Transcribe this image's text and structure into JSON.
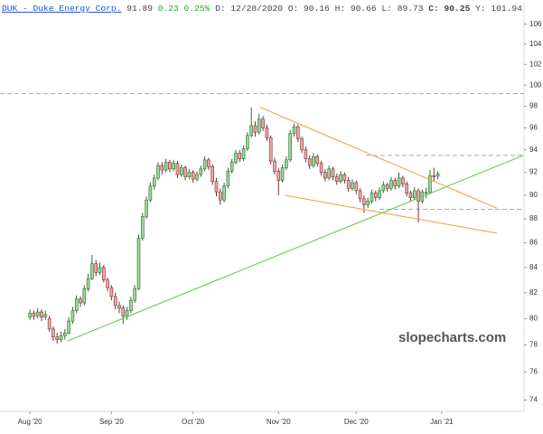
{
  "header": {
    "symbol": "DUK - Duke Energy Corp.",
    "last": 91.89,
    "change": 0.23,
    "change_pct": "0.25%",
    "date_label": "D:",
    "date": "12/28/2020",
    "open_label": "O:",
    "open": 90.16,
    "high_label": "H:",
    "high": 90.66,
    "low_label": "L:",
    "low": 89.73,
    "close_label": "C:",
    "close": 90.25,
    "year_high_label": "Y:",
    "year_high": 101.94
  },
  "chart_data": {
    "type": "candlestick",
    "watermark": "slopecharts.com",
    "log_scale": true,
    "up_color": "#9bd69b",
    "down_color": "#eaa8a8",
    "xlim": [
      -7.7,
      127.2
    ],
    "ylim": [
      73.2,
      108.2
    ],
    "xticks": [
      {
        "value": 0,
        "label": "Aug '20"
      },
      {
        "value": 21,
        "label": "Sep '20"
      },
      {
        "value": 42,
        "label": "Oct '20"
      },
      {
        "value": 64,
        "label": "Nov '20"
      },
      {
        "value": 84,
        "label": "Dec '20"
      },
      {
        "value": 106,
        "label": "Jan '21"
      }
    ],
    "yticks": [
      74,
      76,
      78,
      80,
      82,
      84,
      86,
      88,
      90,
      92,
      94,
      96,
      98,
      100,
      102,
      104,
      106
    ],
    "open": [
      80.1,
      80.4,
      80.2,
      80.5,
      80.1,
      80.0,
      79.2,
      78.6,
      78.4,
      78.7,
      78.9,
      79.8,
      80.6,
      81.5,
      81.2,
      82.3,
      83.1,
      84.3,
      83.6,
      84.0,
      83.0,
      82.4,
      81.7,
      81.0,
      80.8,
      80.2,
      80.6,
      81.4,
      82.3,
      86.4,
      88.2,
      89.6,
      90.8,
      91.5,
      92.6,
      92.2,
      92.9,
      92.3,
      92.8,
      91.8,
      92.4,
      91.6,
      92.0,
      91.4,
      91.8,
      92.3,
      93.1,
      92.5,
      91.2,
      90.3,
      89.6,
      90.8,
      92.1,
      92.9,
      93.7,
      93.2,
      94.1,
      95.3,
      96.2,
      95.6,
      96.8,
      96.0,
      95.1,
      93.0,
      92.1,
      91.3,
      92.4,
      93.1,
      95.5,
      96.1,
      95.0,
      94.0,
      93.2,
      92.6,
      93.4,
      92.8,
      92.0,
      91.5,
      92.3,
      91.6,
      91.2,
      91.8,
      91.3,
      90.6,
      91.1,
      90.4,
      89.7,
      89.2,
      89.5,
      90.2,
      89.8,
      90.4,
      90.9,
      90.6,
      91.3,
      90.8,
      91.5,
      91.0,
      90.2,
      89.8,
      90.4,
      89.5,
      90.16,
      90.25,
      91.7,
      91.66
    ],
    "high": [
      80.7,
      80.6,
      80.8,
      80.7,
      80.6,
      80.2,
      79.4,
      78.9,
      79.0,
      79.2,
      80.1,
      80.9,
      81.8,
      81.7,
      82.6,
      83.5,
      85.0,
      84.6,
      84.4,
      84.2,
      83.2,
      82.6,
      82.0,
      81.3,
      81.0,
      80.9,
      81.7,
      82.6,
      86.7,
      88.5,
      89.9,
      91.1,
      91.8,
      92.9,
      92.9,
      93.2,
      93.1,
      93.1,
      93.0,
      92.7,
      92.6,
      92.3,
      92.2,
      92.1,
      92.6,
      93.4,
      93.3,
      92.7,
      91.5,
      90.6,
      91.1,
      92.4,
      93.2,
      94.0,
      94.0,
      94.4,
      95.6,
      97.9,
      96.6,
      97.3,
      97.1,
      96.3,
      95.3,
      93.3,
      92.4,
      92.7,
      93.4,
      95.8,
      96.4,
      96.3,
      95.2,
      94.3,
      93.5,
      93.7,
      93.6,
      93.0,
      92.3,
      92.6,
      92.5,
      91.9,
      92.1,
      92.0,
      91.6,
      91.4,
      91.3,
      90.6,
      90.0,
      89.8,
      90.5,
      90.4,
      90.7,
      91.2,
      91.1,
      91.6,
      91.5,
      92.0,
      91.7,
      91.2,
      90.4,
      90.7,
      90.6,
      90.5,
      90.66,
      92.2,
      92.4,
      92.1
    ],
    "low": [
      79.9,
      79.9,
      80.0,
      79.8,
      79.9,
      79.0,
      78.3,
      78.1,
      78.2,
      78.4,
      78.8,
      79.6,
      80.4,
      80.9,
      81.0,
      82.1,
      83.0,
      83.3,
      83.4,
      82.8,
      82.1,
      81.4,
      80.7,
      80.4,
      79.6,
      79.9,
      80.4,
      81.2,
      82.2,
      86.2,
      88.0,
      89.4,
      90.5,
      91.3,
      91.8,
      92.0,
      92.0,
      92.1,
      91.5,
      91.6,
      91.3,
      91.4,
      91.1,
      91.2,
      91.6,
      92.1,
      92.2,
      90.9,
      89.9,
      89.2,
      89.4,
      90.6,
      91.9,
      92.7,
      92.9,
      93.0,
      93.9,
      95.1,
      95.2,
      95.4,
      95.7,
      94.8,
      92.7,
      91.8,
      90.0,
      91.1,
      92.2,
      92.9,
      95.2,
      94.7,
      93.7,
      92.9,
      92.3,
      92.4,
      92.5,
      91.7,
      91.2,
      91.3,
      91.3,
      90.9,
      91.0,
      91.0,
      90.3,
      90.4,
      90.1,
      89.4,
      88.5,
      88.9,
      89.3,
      89.5,
      89.6,
      90.2,
      90.3,
      90.4,
      90.5,
      90.6,
      90.7,
      89.9,
      89.5,
      89.6,
      87.7,
      89.3,
      89.73,
      90.1,
      91.2,
      91.4
    ],
    "close": [
      80.4,
      80.2,
      80.5,
      80.1,
      80.3,
      79.2,
      78.6,
      78.4,
      78.7,
      78.9,
      79.8,
      80.6,
      81.5,
      81.2,
      82.3,
      83.1,
      84.3,
      83.6,
      84.0,
      83.0,
      82.4,
      81.7,
      81.0,
      80.8,
      80.2,
      80.6,
      81.4,
      82.3,
      86.4,
      88.2,
      89.6,
      90.8,
      91.5,
      92.6,
      92.2,
      92.9,
      92.3,
      92.8,
      91.8,
      92.4,
      91.6,
      92.0,
      91.4,
      91.8,
      92.3,
      93.1,
      92.5,
      91.2,
      90.3,
      89.6,
      90.8,
      92.1,
      92.9,
      93.7,
      93.2,
      94.1,
      95.3,
      96.2,
      95.6,
      96.8,
      96.0,
      95.1,
      93.0,
      92.1,
      91.3,
      92.4,
      93.1,
      95.5,
      96.1,
      95.0,
      94.0,
      93.2,
      92.6,
      93.4,
      92.8,
      92.0,
      91.5,
      92.3,
      91.6,
      91.2,
      91.8,
      91.3,
      90.6,
      91.1,
      90.4,
      89.7,
      89.2,
      89.5,
      90.2,
      89.8,
      90.4,
      90.9,
      90.6,
      91.3,
      90.8,
      91.5,
      91.0,
      90.2,
      89.8,
      90.4,
      89.5,
      90.3,
      90.25,
      91.7,
      91.66,
      91.89
    ],
    "trendlines": [
      {
        "color": "#f5a04a",
        "from": [
          59.3,
          97.9
        ],
        "to": [
          120.2,
          88.9
        ]
      },
      {
        "color": "#f5a04a",
        "from": [
          65.6,
          90.0
        ],
        "to": [
          120.2,
          86.8
        ]
      },
      {
        "color": "#66cc55",
        "from": [
          9.7,
          78.3
        ],
        "to": [
          127.0,
          93.5
        ]
      }
    ],
    "hlines": [
      {
        "value": 99.2,
        "color": "#aaaaaa"
      },
      {
        "value": 93.5,
        "from": 86.5,
        "color": "#aaaaaa"
      },
      {
        "value": 88.8,
        "from": 90,
        "color": "#aaaaaa"
      }
    ]
  }
}
